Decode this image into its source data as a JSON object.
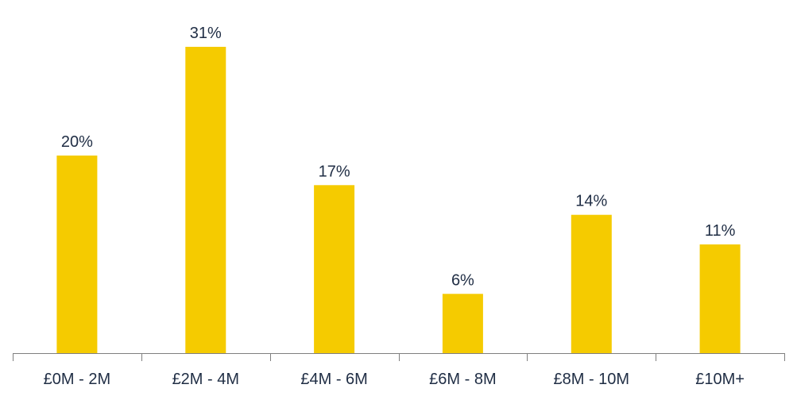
{
  "chart_data": {
    "type": "bar",
    "categories": [
      "£0M - 2M",
      "£2M - 4M",
      "£4M - 6M",
      "£6M - 8M",
      "£8M - 10M",
      "£10M+"
    ],
    "values": [
      20,
      31,
      17,
      6,
      14,
      11
    ],
    "value_labels": [
      "20%",
      "31%",
      "17%",
      "6%",
      "14%",
      "11%"
    ],
    "unit": "%",
    "title": "",
    "xlabel": "",
    "ylabel": "",
    "ylim": [
      0,
      32
    ],
    "grid": false,
    "legend": "none",
    "bar_color": "#f5cb00",
    "axis_color": "#7f7f7f",
    "text_color": "#1f2d44"
  }
}
